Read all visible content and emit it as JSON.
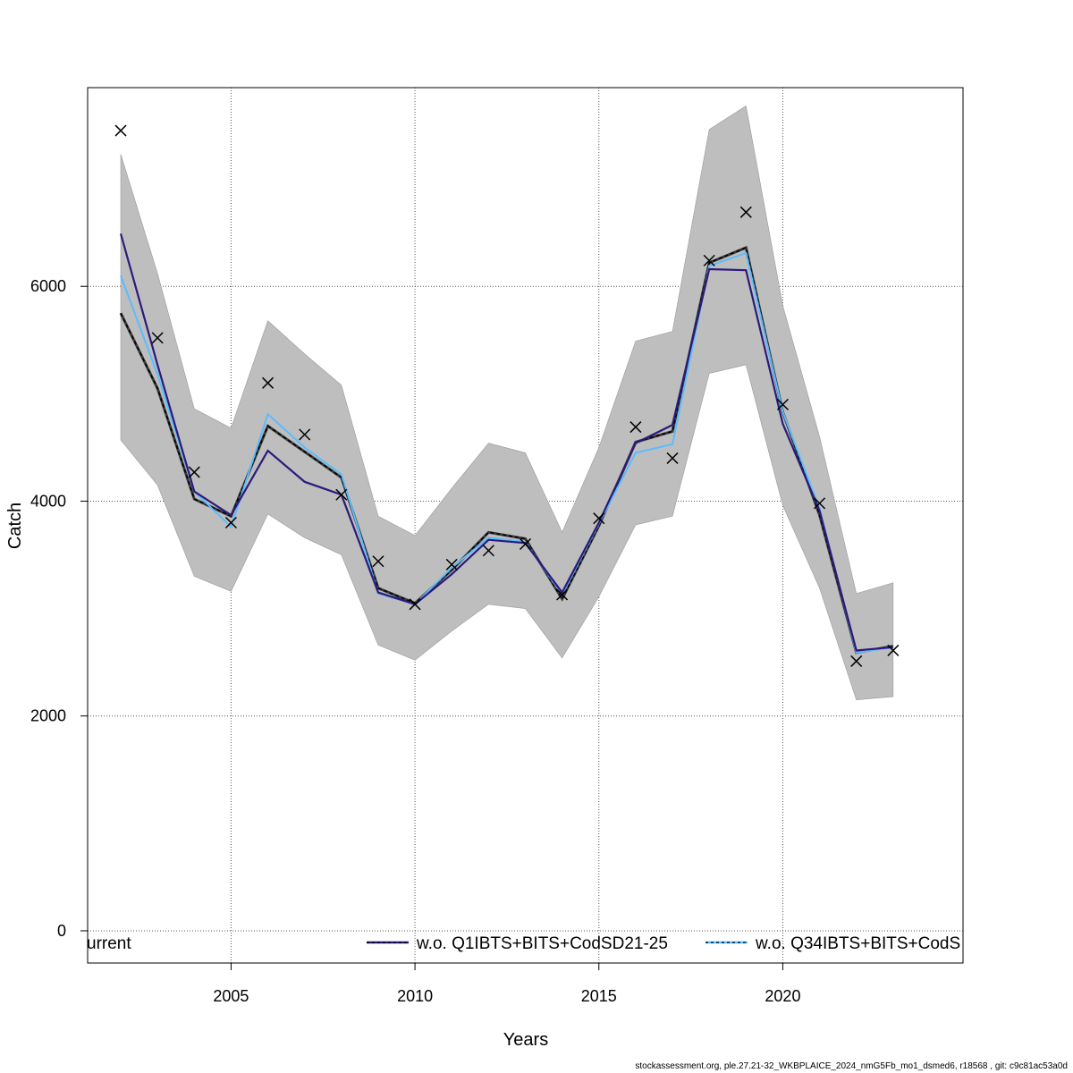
{
  "chart_data": {
    "type": "line",
    "title": "",
    "xlabel": "Years",
    "ylabel": "Catch",
    "xlim": [
      2001.1,
      2024.9
    ],
    "ylim": [
      -300,
      7850
    ],
    "x_ticks": [
      2005,
      2010,
      2015,
      2020
    ],
    "y_ticks": [
      0,
      2000,
      4000,
      6000
    ],
    "grid": true,
    "legend_position": "bottom",
    "legend": [
      {
        "label": "urrent",
        "color": "#000000",
        "style": "none"
      },
      {
        "label": "w.o. Q1IBTS+BITS+CodSD21-25",
        "color": "#2c1a7a",
        "style": "solid-dashed"
      },
      {
        "label": "w.o. Q34IBTS+BITS+CodS",
        "color": "#5bbcff",
        "style": "solid-dashed"
      }
    ],
    "x": [
      2002,
      2003,
      2004,
      2005,
      2006,
      2007,
      2008,
      2009,
      2010,
      2011,
      2012,
      2013,
      2014,
      2015,
      2016,
      2017,
      2018,
      2019,
      2020,
      2021,
      2022,
      2023
    ],
    "band": {
      "name": "confidence interval",
      "color": "#bebebe",
      "lower": [
        4570,
        4150,
        3300,
        3160,
        3880,
        3660,
        3500,
        2660,
        2520,
        2790,
        3040,
        3000,
        2540,
        3110,
        3780,
        3860,
        5190,
        5270,
        3960,
        3190,
        2150,
        2180
      ],
      "upper": [
        7230,
        6120,
        4860,
        4680,
        5680,
        5370,
        5080,
        3860,
        3680,
        4120,
        4540,
        4450,
        3710,
        4500,
        5490,
        5580,
        7460,
        7680,
        5820,
        4600,
        3140,
        3240
      ]
    },
    "series": [
      {
        "name": "current",
        "color": "#000000",
        "style": "dashed",
        "values": [
          5750,
          5050,
          4020,
          3860,
          4700,
          4460,
          4220,
          3190,
          3050,
          3360,
          3710,
          3650,
          3090,
          3770,
          4550,
          4650,
          6220,
          6360,
          4830,
          3870,
          2590,
          2650
        ]
      },
      {
        "name": "w.o. Q1IBTS+BITS+CodSD21-25",
        "color": "#2c1a7a",
        "style": "solid",
        "values": [
          6490,
          5270,
          4090,
          3870,
          4470,
          4180,
          4060,
          3150,
          3040,
          3320,
          3640,
          3610,
          3150,
          3800,
          4540,
          4710,
          6160,
          6150,
          4720,
          3910,
          2610,
          2640
        ]
      },
      {
        "name": "w.o. Q34IBTS+BITS+CodS",
        "color": "#5bbcff",
        "style": "solid",
        "values": [
          6100,
          5180,
          4090,
          3760,
          4810,
          4500,
          4250,
          3140,
          3040,
          3380,
          3660,
          3620,
          3130,
          3790,
          4450,
          4530,
          6190,
          6310,
          4830,
          3930,
          2590,
          2640
        ]
      }
    ],
    "observations": {
      "name": "observed catch",
      "marker": "x",
      "values": [
        7450,
        5520,
        4270,
        3800,
        5100,
        4620,
        4060,
        3440,
        3040,
        3410,
        3540,
        3600,
        3130,
        3840,
        4690,
        4400,
        6240,
        6690,
        4900,
        3980,
        2510,
        2610
      ]
    }
  },
  "footer": "stockassessment.org, ple.27.21-32_WKBPLAICE_2024_nmG5Fb_mo1_dsmed6, r18568 , git: c9c81ac53a0d"
}
